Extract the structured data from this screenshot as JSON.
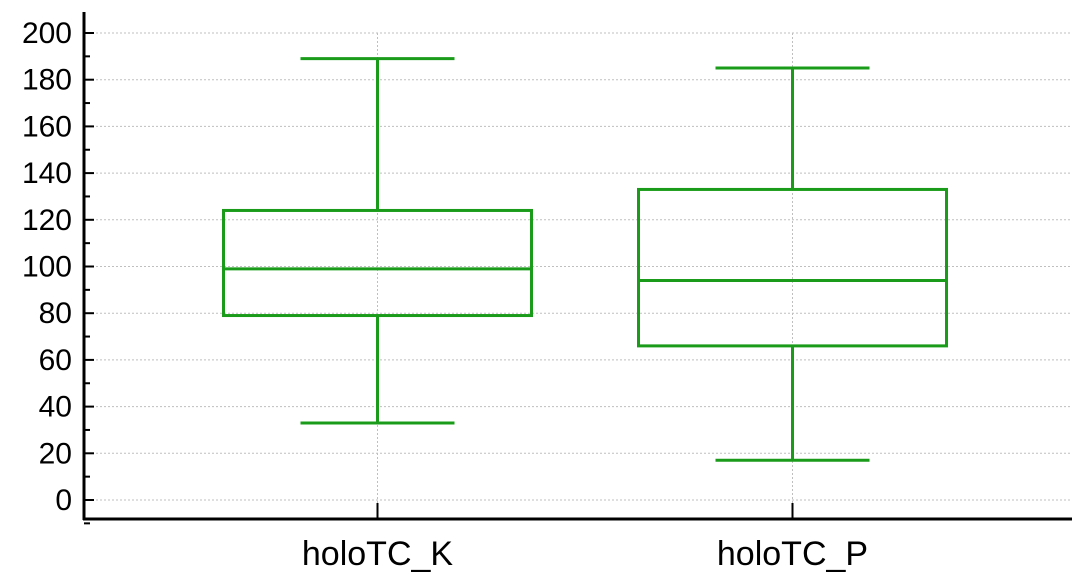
{
  "chart_data": {
    "type": "box",
    "categories": [
      "holoTC_K",
      "holoTC_P"
    ],
    "boxes": [
      {
        "name": "holoTC_K",
        "whisker_low": 33,
        "q1": 79,
        "median": 99,
        "q3": 124,
        "whisker_high": 189
      },
      {
        "name": "holoTC_P",
        "whisker_low": 17,
        "q1": 66,
        "median": 94,
        "q3": 133,
        "whisker_high": 185
      }
    ],
    "title": "",
    "xlabel": "",
    "ylabel": "",
    "ylim": [
      0,
      200
    ],
    "yticks": [
      0,
      20,
      40,
      60,
      80,
      100,
      120,
      140,
      160,
      180,
      200
    ],
    "grid": true,
    "colors": {
      "box": "#1a9c1a",
      "axis": "#000000",
      "grid": "#bfbfbf"
    }
  }
}
